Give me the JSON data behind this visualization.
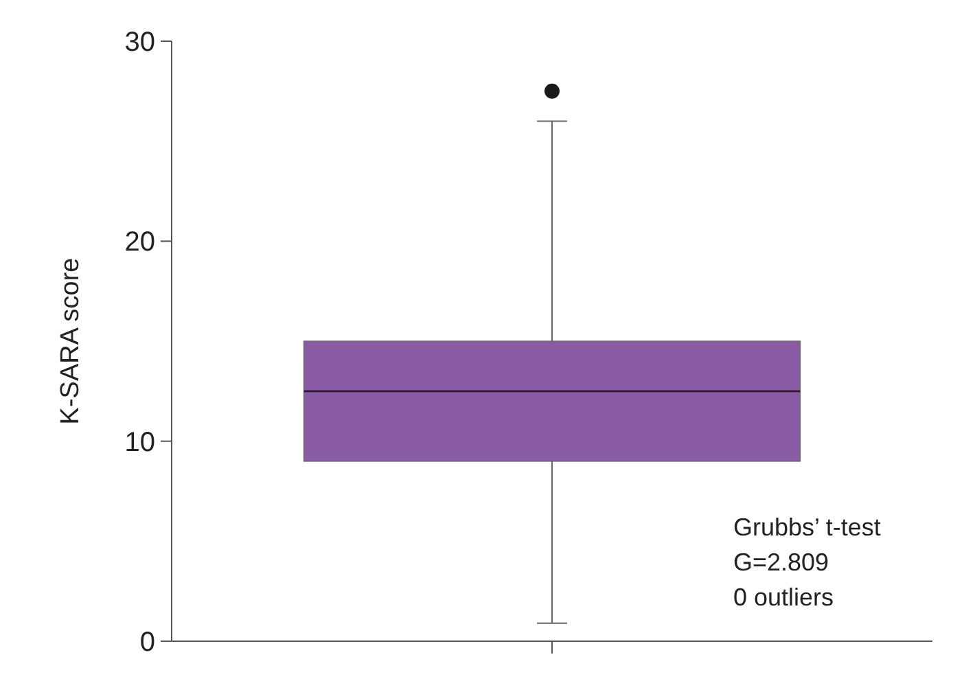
{
  "chart_data": {
    "type": "box",
    "ylabel": "K-SARA score",
    "categories": [
      null
    ],
    "boxes": [
      {
        "low": 0.9,
        "q1": 9,
        "median": 12.5,
        "q3": 15,
        "high": 26,
        "outliers": [
          27.5
        ]
      }
    ],
    "color": "#8a5ca6",
    "ylim": [
      0,
      30
    ],
    "yticks": [
      0,
      10,
      20,
      30
    ],
    "grid": false,
    "annotations": [
      "Grubbs’ t-test",
      "G=2.809",
      "0 outliers"
    ]
  }
}
